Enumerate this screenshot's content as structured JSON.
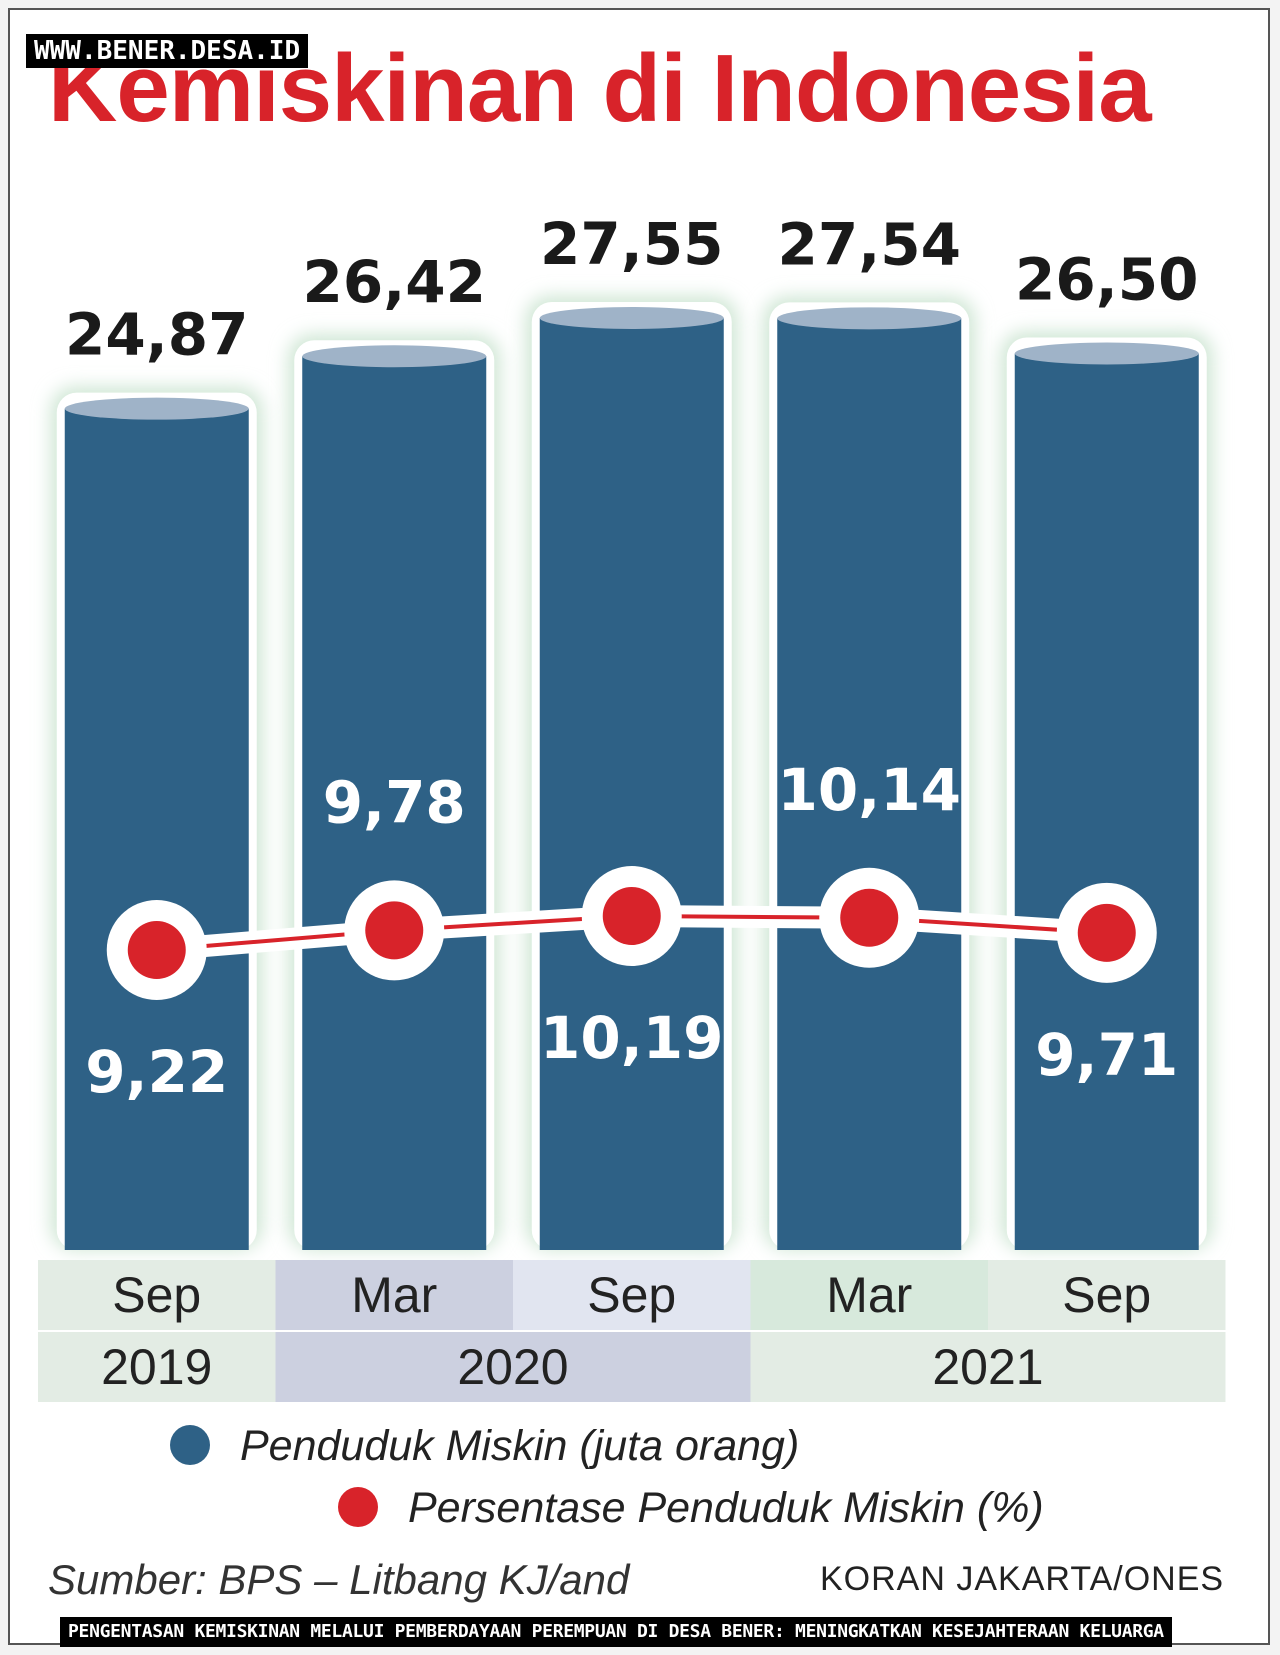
{
  "watermark": "WWW.BENER.DESA.ID",
  "caption": "PENGENTASAN KEMISKINAN MELALUI PEMBERDAYAAN PEREMPUAN DI DESA BENER: MENINGKATKAN KESEJAHTERAAN KELUARGA",
  "source": "Sumber: BPS – Litbang KJ/and",
  "credit": "KORAN JAKARTA/ONES",
  "colors": {
    "title": "#d8232a",
    "bar": "#2e6186",
    "bar_top": "#9fb3c8",
    "line": "#d8232a",
    "tick_bg": [
      "#e3ece4",
      "#ccd0e0",
      "#e1e5f0",
      "#d7e9dc",
      "#e3ece4"
    ],
    "year_bg": [
      "#e3ece4",
      "#ccd0e0",
      "#e3ece4"
    ]
  },
  "chart_data": {
    "type": "bar",
    "title": "Kemiskinan di Indonesia",
    "categories": [
      "Sep",
      "Mar",
      "Sep",
      "Mar",
      "Sep"
    ],
    "years": [
      {
        "label": "2019",
        "span": 1
      },
      {
        "label": "2020",
        "span": 2
      },
      {
        "label": "2021",
        "span": 2
      }
    ],
    "series": [
      {
        "name": "Penduduk Miskin (juta orang)",
        "type": "bar",
        "values": [
          24.87,
          26.42,
          27.55,
          27.54,
          26.5
        ],
        "labels": [
          "24,87",
          "26,42",
          "27,55",
          "27,54",
          "26,50"
        ]
      },
      {
        "name": "Persentase Penduduk Miskin (%)",
        "type": "line",
        "values": [
          9.22,
          9.78,
          10.19,
          10.14,
          9.71
        ],
        "labels": [
          "9,22",
          "9,78",
          "10,19",
          "10,14",
          "9,71"
        ],
        "label_position": [
          "below",
          "above",
          "below",
          "above",
          "below"
        ]
      }
    ],
    "legend": "bottom"
  }
}
